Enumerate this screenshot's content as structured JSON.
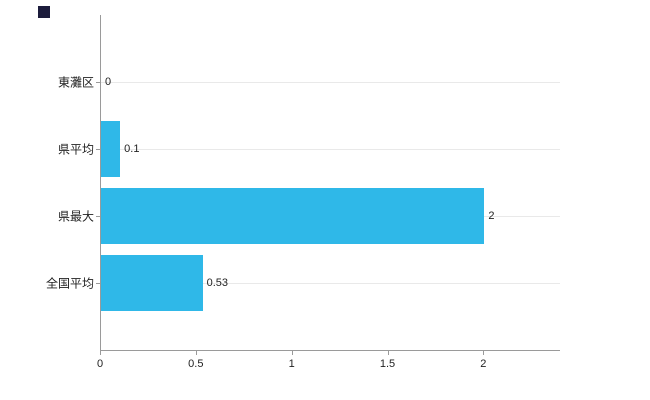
{
  "chart_data": {
    "type": "bar",
    "orientation": "horizontal",
    "title": "",
    "xlabel": "",
    "ylabel": "",
    "categories": [
      "東灘区",
      "県平均",
      "県最大",
      "全国平均"
    ],
    "values": [
      0,
      0.1,
      2,
      0.53
    ],
    "value_labels": [
      "0",
      "0.1",
      "2",
      "0.53"
    ],
    "x_ticks": [
      0,
      0.5,
      1,
      1.5,
      2
    ],
    "x_tick_labels": [
      "0",
      "0.5",
      "1",
      "1.5",
      "2"
    ],
    "xlim": [
      0,
      2.4
    ],
    "grid": true,
    "legend_position": "none",
    "bar_color": "#2fb8e8",
    "axis_color": "#9a9a9a",
    "gridline_color": "#e9e9e9",
    "marker_color": "#1c1c3c"
  }
}
